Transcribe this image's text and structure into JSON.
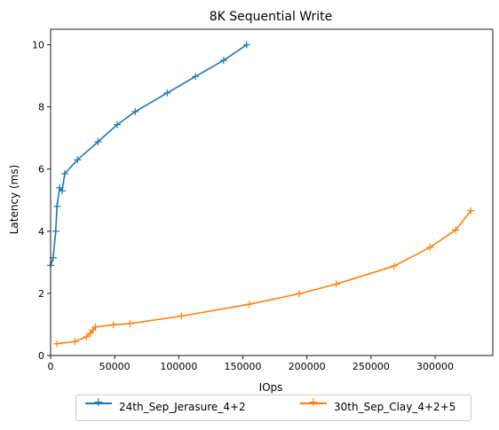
{
  "chart_data": {
    "type": "line",
    "title": "8K  Sequential Write",
    "xlabel": "IOps",
    "ylabel": "Latency (ms)",
    "xlim": [
      0,
      345000
    ],
    "ylim": [
      0,
      10.5
    ],
    "x_ticks": [
      0,
      50000,
      100000,
      150000,
      200000,
      250000,
      300000
    ],
    "y_ticks": [
      0,
      2,
      4,
      6,
      8,
      10
    ],
    "grid": false,
    "legend_position": "below",
    "series": [
      {
        "name": "24th_Sep_Jerasure_4+2",
        "color": "#1f77b4",
        "marker": "+",
        "x": [
          0,
          2000,
          4000,
          5000,
          7000,
          9000,
          11000,
          21000,
          37000,
          52000,
          66000,
          91000,
          113000,
          135000,
          153000
        ],
        "y": [
          2.9,
          3.15,
          4.0,
          4.8,
          5.4,
          5.3,
          5.85,
          6.3,
          6.88,
          7.43,
          7.85,
          8.45,
          8.98,
          9.5,
          10.0
        ]
      },
      {
        "name": "30th_Sep_Clay_4+2+5",
        "color": "#ff7f0e",
        "marker": "+",
        "x": [
          5000,
          19000,
          28000,
          31000,
          33000,
          35000,
          49000,
          62000,
          102000,
          155000,
          194000,
          223000,
          268000,
          296000,
          316000,
          328000
        ],
        "y": [
          0.38,
          0.45,
          0.6,
          0.72,
          0.82,
          0.92,
          0.99,
          1.03,
          1.27,
          1.65,
          1.99,
          2.3,
          2.88,
          3.48,
          4.04,
          4.66
        ]
      }
    ]
  }
}
